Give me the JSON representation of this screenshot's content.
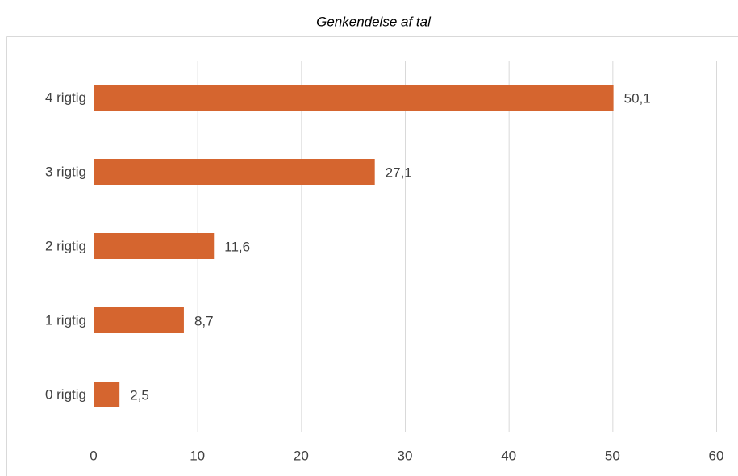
{
  "chart_data": {
    "type": "bar",
    "orientation": "horizontal",
    "title": "Genkendelse af tal",
    "categories": [
      "4 rigtig",
      "3 rigtig",
      "2 rigtig",
      "1 rigtig",
      "0 rigtig"
    ],
    "values": [
      50.1,
      27.1,
      11.6,
      8.7,
      2.5
    ],
    "value_labels": [
      "50,1",
      "27,1",
      "11,6",
      "8,7",
      "2,5"
    ],
    "color": "#d5652f",
    "xlim": [
      0,
      60
    ],
    "xticks": [
      0,
      10,
      20,
      30,
      40,
      50,
      60
    ],
    "grid": true
  }
}
